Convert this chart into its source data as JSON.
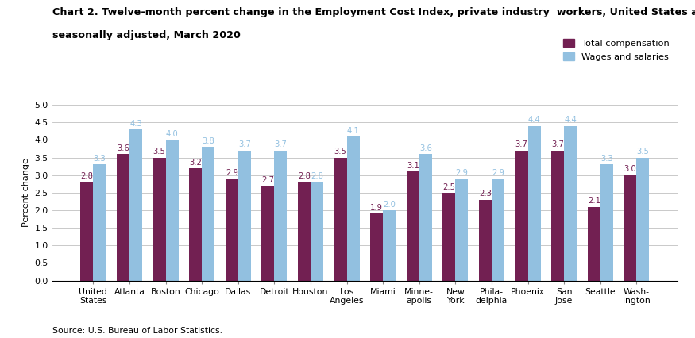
{
  "title_line1": "Chart 2. Twelve-month percent change in the Employment Cost Index, private industry  workers, United States and localities, not",
  "title_line2": "seasonally adjusted, March 2020",
  "ylabel": "Percent change",
  "source": "Source: U.S. Bureau of Labor Statistics.",
  "categories": [
    "United\nStates",
    "Atlanta",
    "Boston",
    "Chicago",
    "Dallas",
    "Detroit",
    "Houston",
    "Los\nAngeles",
    "Miami",
    "Minne-\napolis",
    "New\nYork",
    "Phila-\ndelphia",
    "Phoenix",
    "San\nJose",
    "Seattle",
    "Wash-\nington"
  ],
  "total_compensation": [
    2.8,
    3.6,
    3.5,
    3.2,
    2.9,
    2.7,
    2.8,
    3.5,
    1.9,
    3.1,
    2.5,
    2.3,
    3.7,
    3.7,
    2.1,
    3.0
  ],
  "wages_salaries": [
    3.3,
    4.3,
    4.0,
    3.8,
    3.7,
    3.7,
    2.8,
    4.1,
    2.0,
    3.6,
    2.9,
    2.9,
    4.4,
    4.4,
    3.3,
    3.5
  ],
  "color_total": "#722052",
  "color_wages": "#92c0e0",
  "ylim": [
    0.0,
    5.0
  ],
  "yticks": [
    0.0,
    0.5,
    1.0,
    1.5,
    2.0,
    2.5,
    3.0,
    3.5,
    4.0,
    4.5,
    5.0
  ],
  "legend_total": "Total compensation",
  "legend_wages": "Wages and salaries",
  "bar_width": 0.35,
  "label_fontsize": 7.2,
  "title_fontsize": 9.2,
  "axis_label_fontsize": 8.0,
  "tick_fontsize": 7.8,
  "legend_fontsize": 8.2,
  "source_fontsize": 7.8
}
